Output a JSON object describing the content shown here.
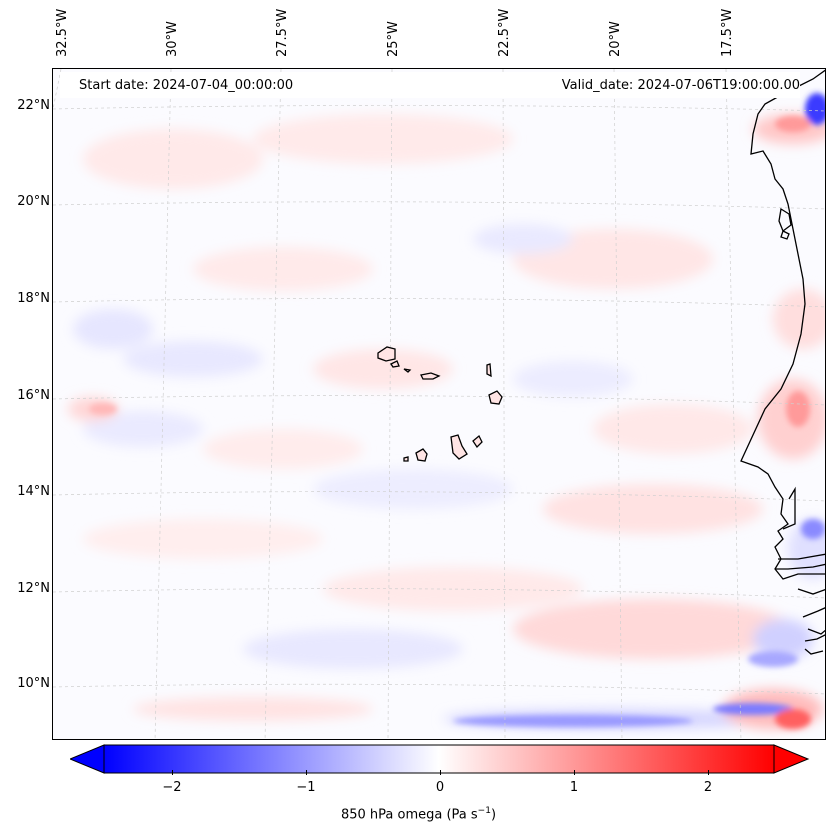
{
  "header": {
    "start_date": "Start date: 2024-07-04_00:00:00",
    "valid_date": "Valid_date: 2024-07-06T19:00:00.00"
  },
  "longitude_labels": [
    "32.5°W",
    "30°W",
    "27.5°W",
    "25°W",
    "22.5°W",
    "20°W",
    "17.5°W"
  ],
  "latitude_labels": [
    "22°N",
    "20°N",
    "18°N",
    "16°N",
    "14°N",
    "12°N",
    "10°N"
  ],
  "colorbar": {
    "label_main": "850 hPa omega (Pa s",
    "label_sup": "−1",
    "label_end": ")",
    "ticks": [
      "−2",
      "−1",
      "0",
      "1",
      "2"
    ],
    "tick_values": [
      -2,
      -1,
      0,
      1,
      2
    ],
    "range": [
      -2.5,
      2.5
    ],
    "colormap": "bwr",
    "extend": "both"
  },
  "colors": {
    "negative": "#0000ff",
    "neutral": "#ffffff",
    "positive": "#ff0000",
    "coastline": "#000000",
    "gridline": "#c8c8c8"
  }
}
